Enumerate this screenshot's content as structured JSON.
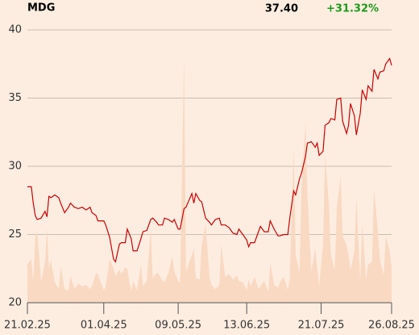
{
  "chart_data": {
    "type": "line",
    "title": "MDG",
    "price_label": "37.40",
    "change_label": "+31.32%",
    "change_color": "#1a9c1a",
    "x": [
      "21.02.25",
      "23.02.25",
      "24.02.25",
      "25.02.25",
      "26.02.25",
      "28.02.25",
      "02.03.25",
      "03.03.25",
      "04.03.25",
      "05.03.25",
      "07.03.25",
      "09.03.25",
      "10.03.25",
      "12.03.25",
      "14.03.25",
      "15.03.25",
      "17.03.25",
      "19.03.25",
      "21.03.25",
      "23.03.25",
      "25.03.25",
      "26.03.25",
      "28.03.25",
      "29.03.25",
      "01.04.25",
      "02.04.25",
      "04.04.25",
      "06.04.25",
      "07.04.25",
      "09.04.25",
      "10.04.25",
      "12.04.25",
      "13.04.25",
      "15.04.25",
      "16.04.25",
      "18.04.25",
      "20.04.25",
      "21.04.25",
      "23.04.25",
      "25.04.25",
      "26.04.25",
      "28.04.25",
      "29.04.25",
      "01.05.25",
      "02.05.25",
      "04.05.25",
      "06.05.25",
      "07.05.25",
      "09.05.25",
      "10.05.25",
      "12.05.25",
      "13.05.25",
      "16.05.25",
      "17.05.25",
      "18.05.25",
      "20.05.25",
      "21.05.25",
      "23.05.25",
      "25.05.25",
      "26.05.25",
      "28.05.25",
      "30.05.25",
      "31.05.25",
      "02.06.25",
      "04.06.25",
      "06.06.25",
      "08.06.25",
      "09.06.25",
      "11.06.25",
      "13.06.25",
      "14.06.25",
      "15.06.25",
      "17.06.25",
      "19.06.25",
      "20.06.25",
      "22.06.25",
      "24.06.25",
      "25.06.25",
      "27.06.25",
      "29.06.25",
      "30.06.25",
      "02.07.25",
      "04.07.25",
      "05.07.25",
      "07.07.25",
      "08.07.25",
      "10.07.25",
      "11.07.25",
      "13.07.25",
      "14.07.25",
      "16.07.25",
      "18.07.25",
      "19.07.25",
      "20.07.25",
      "22.07.25",
      "23.07.25",
      "25.07.25",
      "26.07.25",
      "28.07.25",
      "29.07.25",
      "31.07.25",
      "01.08.25",
      "03.08.25",
      "04.08.25",
      "05.08.25",
      "07.08.25",
      "08.08.25",
      "10.08.25",
      "11.08.25",
      "13.08.25",
      "14.08.25",
      "16.08.25",
      "17.08.25",
      "19.08.25",
      "20.08.25",
      "22.08.25",
      "23.08.25",
      "25.08.25",
      "26.08.25"
    ],
    "series": [
      {
        "kind": "area",
        "color": "#f9d9c2",
        "values": [
          22.8,
          23.2,
          21.5,
          24.8,
          25.3,
          21.5,
          23.0,
          25.5,
          22.5,
          23.1,
          21.5,
          21.0,
          22.7,
          21.0,
          20.9,
          22.0,
          21.0,
          21.4,
          21.2,
          21.3,
          21.0,
          21.2,
          22.2,
          22.1,
          20.9,
          21.2,
          23.2,
          22.5,
          22.0,
          22.4,
          22.1,
          22.6,
          22.5,
          20.8,
          21.6,
          20.9,
          22.8,
          21.2,
          21.6,
          25.5,
          21.8,
          22.2,
          22.1,
          21.6,
          21.5,
          22.2,
          23.4,
          22.3,
          21.6,
          21.5,
          38.0,
          22.3,
          23.5,
          24.0,
          21.8,
          21.7,
          24.2,
          25.8,
          21.9,
          21.3,
          21.0,
          21.3,
          24.3,
          21.9,
          22.1,
          21.7,
          22.0,
          21.6,
          21.5,
          20.9,
          21.7,
          21.2,
          21.9,
          21.0,
          21.2,
          21.6,
          20.8,
          23.0,
          21.3,
          21.1,
          21.5,
          21.9,
          20.9,
          21.8,
          31.6,
          23.5,
          22.2,
          28.5,
          33.2,
          28.0,
          22.3,
          24.0,
          22.6,
          21.3,
          24.2,
          30.9,
          27.1,
          23.5,
          22.4,
          27.0,
          29.3,
          24.9,
          24.2,
          23.5,
          22.4,
          23.8,
          27.7,
          21.6,
          25.8,
          21.7,
          22.8,
          23.0,
          28.3,
          25.3,
          23.2,
          22.0,
          24.9,
          23.8,
          22.6
        ]
      },
      {
        "kind": "line",
        "color": "#cc0000",
        "values": [
          28.5,
          28.5,
          27.3,
          26.4,
          26.1,
          26.2,
          26.7,
          26.3,
          27.8,
          27.7,
          27.9,
          27.7,
          27.3,
          26.6,
          27.0,
          27.3,
          27.0,
          26.9,
          27.0,
          26.8,
          27.0,
          26.6,
          26.4,
          26.0,
          26.0,
          25.7,
          24.8,
          23.2,
          23.0,
          24.3,
          24.4,
          24.4,
          25.4,
          24.7,
          23.8,
          23.8,
          24.7,
          25.2,
          25.3,
          26.1,
          26.2,
          25.9,
          25.7,
          25.7,
          26.2,
          26.1,
          25.9,
          26.1,
          25.4,
          25.4,
          26.9,
          27.0,
          28.0,
          27.3,
          28.0,
          27.5,
          27.4,
          26.2,
          25.9,
          25.7,
          26.1,
          26.2,
          25.7,
          25.7,
          25.5,
          25.1,
          25.0,
          25.4,
          25.0,
          24.6,
          24.1,
          24.4,
          24.4,
          25.2,
          25.6,
          25.2,
          25.2,
          26.0,
          25.4,
          24.9,
          24.9,
          25.0,
          25.0,
          26.2,
          28.2,
          27.9,
          29.1,
          29.5,
          30.7,
          31.7,
          31.8,
          31.4,
          31.7,
          30.8,
          31.1,
          33.0,
          33.2,
          33.5,
          33.4,
          34.9,
          35.0,
          33.3,
          32.4,
          33.0,
          34.6,
          33.7,
          32.3,
          33.9,
          35.6,
          34.9,
          35.9,
          35.5,
          37.1,
          36.4,
          36.9,
          37.0,
          37.5,
          37.9,
          37.4
        ]
      }
    ],
    "xlim": [
      "21.02.25",
      "26.08.25"
    ],
    "xticks": [
      "21.02.25",
      "01.04.25",
      "09.05.25",
      "13.06.25",
      "21.07.25",
      "26.08.25"
    ],
    "ylim": [
      20,
      40
    ],
    "yticks": [
      20,
      25,
      30,
      35,
      40
    ],
    "grid": true
  }
}
